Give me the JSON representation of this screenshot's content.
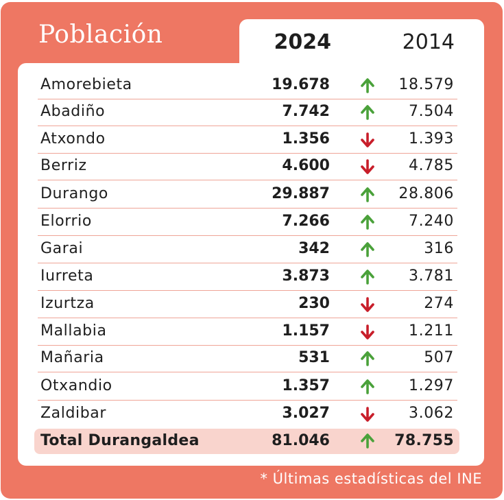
{
  "title": "Población",
  "columns": {
    "year_current": "2024",
    "year_previous": "2014"
  },
  "colors": {
    "accent": "#ee7763",
    "up": "#4aa13a",
    "down": "#c81e2a",
    "total_bg": "#f9d4cd",
    "divider": "#efa496"
  },
  "rows": [
    {
      "name": "Amorebieta",
      "v2024": "19.678",
      "trend": "up",
      "v2014": "18.579"
    },
    {
      "name": "Abadiño",
      "v2024": "7.742",
      "trend": "up",
      "v2014": "7.504"
    },
    {
      "name": "Atxondo",
      "v2024": "1.356",
      "trend": "down",
      "v2014": "1.393"
    },
    {
      "name": "Berriz",
      "v2024": "4.600",
      "trend": "down",
      "v2014": "4.785"
    },
    {
      "name": "Durango",
      "v2024": "29.887",
      "trend": "up",
      "v2014": "28.806"
    },
    {
      "name": "Elorrio",
      "v2024": "7.266",
      "trend": "up",
      "v2014": "7.240"
    },
    {
      "name": "Garai",
      "v2024": "342",
      "trend": "up",
      "v2014": "316"
    },
    {
      "name": "Iurreta",
      "v2024": "3.873",
      "trend": "up",
      "v2014": "3.781"
    },
    {
      "name": "Izurtza",
      "v2024": "230",
      "trend": "down",
      "v2014": "274"
    },
    {
      "name": "Mallabia",
      "v2024": "1.157",
      "trend": "down",
      "v2014": "1.211"
    },
    {
      "name": "Mañaria",
      "v2024": "531",
      "trend": "up",
      "v2014": "507"
    },
    {
      "name": "Otxandio",
      "v2024": "1.357",
      "trend": "up",
      "v2014": "1.297"
    },
    {
      "name": "Zaldibar",
      "v2024": "3.027",
      "trend": "down",
      "v2014": "3.062"
    }
  ],
  "total": {
    "name": "Total Durangaldea",
    "v2024": "81.046",
    "trend": "up",
    "v2014": "78.755"
  },
  "footnote": "* Últimas estadísticas del INE"
}
